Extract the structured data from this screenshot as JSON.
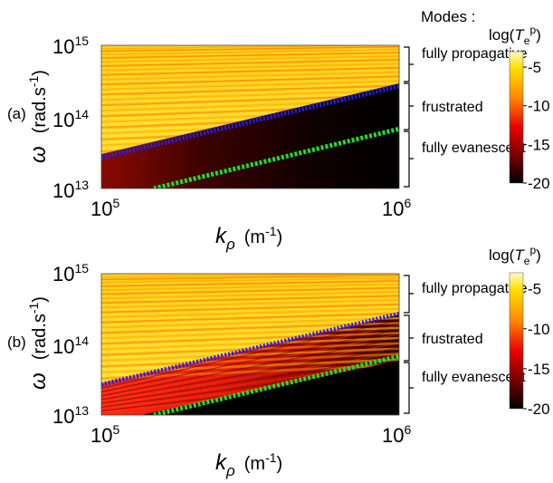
{
  "figure": {
    "modes_header": "Modes :",
    "modes": [
      "fully propagative",
      "frustrated",
      "fully evanescent"
    ]
  },
  "chart_data": [
    {
      "type": "heatmap",
      "panel_label": "(a)",
      "xlabel_symbol": "k",
      "xlabel_sub": "ρ",
      "xlabel_unit": "(m",
      "xlabel_unit_exp": "-1",
      "xlabel_unit_close": ")",
      "ylabel_symbol": "ω",
      "ylabel_unit": "(rad.s",
      "ylabel_unit_exp": "-1",
      "ylabel_unit_close": ")",
      "x_scale": "log",
      "y_scale": "log",
      "xlim": [
        100000,
        1000000
      ],
      "ylim": [
        10000000000000,
        1000000000000000
      ],
      "x_ticks": [
        {
          "base": "10",
          "exp": "5"
        },
        {
          "base": "10",
          "exp": "6"
        }
      ],
      "y_ticks": [
        {
          "base": "10",
          "exp": "13"
        },
        {
          "base": "10",
          "exp": "14"
        },
        {
          "base": "10",
          "exp": "15"
        }
      ],
      "colorbar": {
        "label_prefix": "log(",
        "label_var": "T",
        "label_sub": "e",
        "label_sup": "p",
        "label_suffix": ")",
        "range": [
          -20,
          -3
        ],
        "ticks": [
          "-5",
          "-10",
          "-15",
          "-20"
        ],
        "tick_values": [
          -5,
          -10,
          -15,
          -20
        ]
      },
      "lines": [
        {
          "color": "#2020ff",
          "style": "dotted",
          "x": [
            100000,
            1000000
          ],
          "y": [
            27000000000000,
            270000000000000
          ]
        },
        {
          "color": "#22dd22",
          "style": "dotted",
          "x": [
            150000,
            1000000
          ],
          "y": [
            10000000000000,
            68000000000000
          ]
        }
      ]
    },
    {
      "type": "heatmap",
      "panel_label": "(b)",
      "xlabel_symbol": "k",
      "xlabel_sub": "ρ",
      "xlabel_unit": "(m",
      "xlabel_unit_exp": "-1",
      "xlabel_unit_close": ")",
      "ylabel_symbol": "ω",
      "ylabel_unit": "(rad.s",
      "ylabel_unit_exp": "-1",
      "ylabel_unit_close": ")",
      "x_scale": "log",
      "y_scale": "log",
      "xlim": [
        100000,
        1000000
      ],
      "ylim": [
        10000000000000,
        1000000000000000
      ],
      "x_ticks": [
        {
          "base": "10",
          "exp": "5"
        },
        {
          "base": "10",
          "exp": "6"
        }
      ],
      "y_ticks": [
        {
          "base": "10",
          "exp": "13"
        },
        {
          "base": "10",
          "exp": "14"
        },
        {
          "base": "10",
          "exp": "15"
        }
      ],
      "colorbar": {
        "label_prefix": "log(",
        "label_var": "T",
        "label_sub": "e",
        "label_sup": "p",
        "label_suffix": ")",
        "range": [
          -20,
          -3
        ],
        "ticks": [
          "-5",
          "-10",
          "-15",
          "-20"
        ],
        "tick_values": [
          -5,
          -10,
          -15,
          -20
        ]
      },
      "lines": [
        {
          "color": "#2020ff",
          "style": "dotted",
          "x": [
            100000,
            1000000
          ],
          "y": [
            27000000000000,
            270000000000000
          ]
        },
        {
          "color": "#22dd22",
          "style": "dotted",
          "x": [
            150000,
            1000000
          ],
          "y": [
            10000000000000,
            68000000000000
          ]
        }
      ]
    }
  ]
}
